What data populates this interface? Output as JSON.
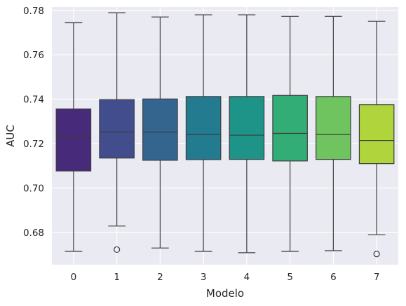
{
  "chart_data": {
    "type": "box",
    "xlabel": "Modelo",
    "ylabel": "AUC",
    "ylim": [
      0.6655,
      0.7815
    ],
    "y_ticks": [
      0.68,
      0.7,
      0.72,
      0.74,
      0.76,
      0.78
    ],
    "y_tick_labels": [
      "0.68",
      "0.70",
      "0.72",
      "0.74",
      "0.76",
      "0.78"
    ],
    "categories": [
      "0",
      "1",
      "2",
      "3",
      "4",
      "5",
      "6",
      "7"
    ],
    "grid": true,
    "colors": [
      "#482a7a",
      "#414d8c",
      "#33658e",
      "#227b8e",
      "#1e9488",
      "#33ad76",
      "#70c460",
      "#b0d43b"
    ],
    "background": "#eaeaf2",
    "boxes": [
      {
        "category": "0",
        "whisker_low": 0.6715,
        "q1": 0.7077,
        "median": 0.7227,
        "q3": 0.7356,
        "whisker_high": 0.7744,
        "outliers": []
      },
      {
        "category": "1",
        "whisker_low": 0.6829,
        "q1": 0.7135,
        "median": 0.7252,
        "q3": 0.7398,
        "whisker_high": 0.7789,
        "outliers": [
          0.6723
        ]
      },
      {
        "category": "2",
        "whisker_low": 0.673,
        "q1": 0.7125,
        "median": 0.7252,
        "q3": 0.7401,
        "whisker_high": 0.777,
        "outliers": []
      },
      {
        "category": "3",
        "whisker_low": 0.6715,
        "q1": 0.7128,
        "median": 0.7241,
        "q3": 0.7412,
        "whisker_high": 0.778,
        "outliers": []
      },
      {
        "category": "4",
        "whisker_low": 0.6709,
        "q1": 0.7129,
        "median": 0.7238,
        "q3": 0.7412,
        "whisker_high": 0.778,
        "outliers": []
      },
      {
        "category": "5",
        "whisker_low": 0.6715,
        "q1": 0.7122,
        "median": 0.7246,
        "q3": 0.7417,
        "whisker_high": 0.7773,
        "outliers": []
      },
      {
        "category": "6",
        "whisker_low": 0.6718,
        "q1": 0.7129,
        "median": 0.7241,
        "q3": 0.7412,
        "whisker_high": 0.7773,
        "outliers": []
      },
      {
        "category": "7",
        "whisker_low": 0.679,
        "q1": 0.711,
        "median": 0.7214,
        "q3": 0.7375,
        "whisker_high": 0.7751,
        "outliers": [
          0.6703
        ]
      }
    ]
  }
}
